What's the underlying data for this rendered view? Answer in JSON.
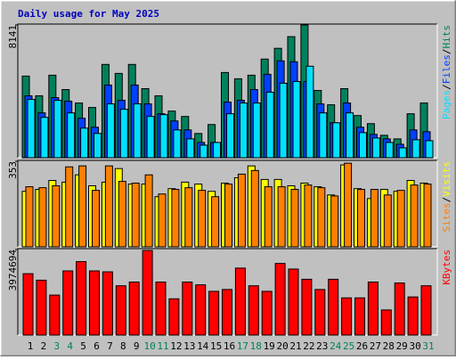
{
  "chart_data": {
    "type": "bar",
    "title": "Daily usage for May 2025",
    "title_color": "#0000c0",
    "legend_separator": "/",
    "categories": [
      "1",
      "2",
      "3",
      "4",
      "5",
      "6",
      "7",
      "8",
      "9",
      "10",
      "11",
      "12",
      "13",
      "14",
      "15",
      "16",
      "17",
      "18",
      "19",
      "20",
      "21",
      "22",
      "23",
      "24",
      "25",
      "26",
      "27",
      "28",
      "29",
      "30",
      "31"
    ],
    "category_colors": [
      "#000000",
      "#000000",
      "#00805c",
      "#00805c",
      "#000000",
      "#000000",
      "#000000",
      "#000000",
      "#000000",
      "#00805c",
      "#00805c",
      "#000000",
      "#000000",
      "#000000",
      "#000000",
      "#000000",
      "#00805c",
      "#00805c",
      "#000000",
      "#000000",
      "#000000",
      "#000000",
      "#000000",
      "#00805c",
      "#00805c",
      "#000000",
      "#000000",
      "#000000",
      "#000000",
      "#000000",
      "#00805c"
    ],
    "panels": [
      {
        "ylim": [
          0,
          8141
        ],
        "yticks": [
          8141
        ],
        "series": [
          {
            "name": "Hits",
            "color": "#00805c",
            "values": [
              5005,
              3795,
              5060,
              4180,
              3355,
              3080,
              5720,
              5170,
              5720,
              4235,
              3795,
              2860,
              2530,
              1485,
              2035,
              5225,
              4840,
              5060,
              6050,
              6710,
              7425,
              8141,
              4125,
              3245,
              4235,
              2585,
              2090,
              1375,
              1155,
              2695,
              3355
            ]
          },
          {
            "name": "Files",
            "color": "#0040ff",
            "values": [
              3795,
              2750,
              3685,
              3465,
              2420,
              1870,
              4455,
              3520,
              4455,
              3300,
              2695,
              2255,
              1705,
              935,
              935,
              3410,
              3520,
              4180,
              5115,
              5940,
              5885,
              4675,
              3300,
              2145,
              3355,
              1870,
              1430,
              1155,
              825,
              1705,
              1595
            ]
          },
          {
            "name": "Pages",
            "color": "#00e0ff",
            "values": [
              3575,
              2475,
              3520,
              2750,
              1815,
              1485,
              3300,
              2970,
              3300,
              2530,
              2640,
              1705,
              1155,
              770,
              935,
              2695,
              3355,
              3355,
              4015,
              4565,
              4675,
              5610,
              2750,
              2145,
              2750,
              1540,
              1210,
              935,
              605,
              1100,
              1045
            ]
          }
        ]
      },
      {
        "ylim": [
          0,
          353
        ],
        "yticks": [
          353
        ],
        "series": [
          {
            "name": "Visits",
            "color": "#ffff00",
            "values": [
              229,
              237,
              274,
              267,
              297,
              252,
              267,
              323,
              259,
              259,
              207,
              240,
              267,
              259,
              229,
              263,
              285,
              334,
              278,
              278,
              252,
              263,
              248,
              214,
              338,
              240,
              199,
              237,
              229,
              274,
              263
            ]
          },
          {
            "name": "Sites",
            "color": "#ff8000",
            "values": [
              248,
              244,
              252,
              330,
              334,
              233,
              334,
              270,
              263,
              297,
              218,
              237,
              244,
              233,
              207,
              259,
              300,
              315,
              248,
              248,
              237,
              255,
              244,
              210,
              345,
              237,
              237,
              214,
              233,
              255,
              259
            ]
          }
        ]
      },
      {
        "ylim": [
          0,
          3974694
        ],
        "yticks": [
          3974694
        ],
        "series": [
          {
            "name": "KBytes",
            "color": "#ff0000",
            "values": [
              2851000,
              2549000,
              1858000,
              2981000,
              3413000,
              2981000,
              2938000,
              2290000,
              2463000,
              3931000,
              2463000,
              1685000,
              2463000,
              2333000,
              2031000,
              2117000,
              3111000,
              2290000,
              2031000,
              3327000,
              3067000,
              2592000,
              2117000,
              2592000,
              1728000,
              1728000,
              2463000,
              1166000,
              2419000,
              1771000,
              2290000
            ]
          }
        ]
      }
    ]
  }
}
